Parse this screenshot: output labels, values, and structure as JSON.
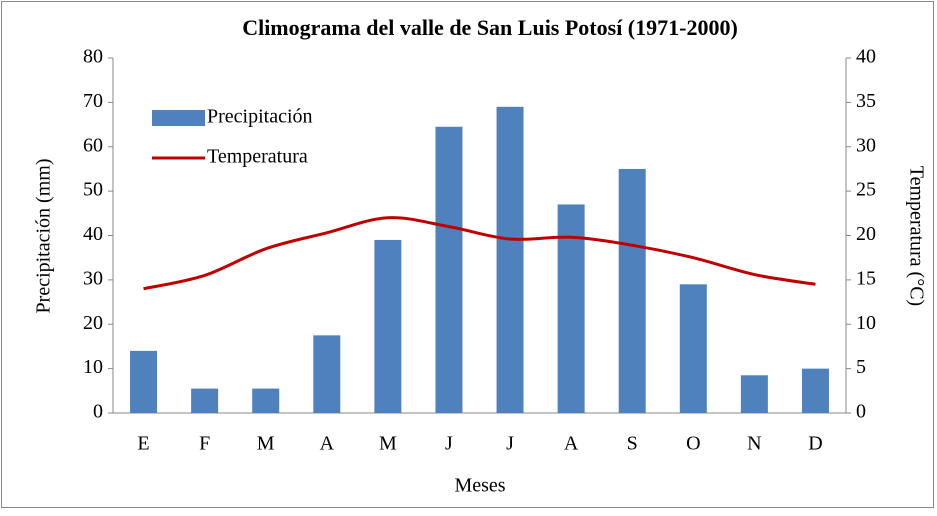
{
  "chart_data": {
    "type": "bar-line",
    "title": "Climograma del valle de San Luis Potosí (1971-2000)",
    "x_label": "Meses",
    "y_label": "Precipitación (mm)",
    "y2_label": "Temperatura (°C)",
    "categories": [
      "E",
      "F",
      "M",
      "A",
      "M",
      "J",
      "J",
      "A",
      "S",
      "O",
      "N",
      "D"
    ],
    "series": [
      {
        "name": "Precipitación",
        "type": "bar",
        "color": "#4f81bd",
        "values": [
          14,
          5.5,
          5.5,
          17.5,
          39,
          64.5,
          69,
          47,
          55,
          29,
          8.5,
          10
        ]
      },
      {
        "name": "Temperatura",
        "type": "line",
        "color": "#c00000",
        "axis": "y2",
        "values": [
          14,
          15.5,
          18.5,
          20.3,
          22,
          21,
          19.6,
          19.8,
          18.9,
          17.5,
          15.6,
          14.5
        ]
      }
    ],
    "ylim": [
      0,
      80
    ],
    "yticks": [
      0,
      10,
      20,
      30,
      40,
      50,
      60,
      70,
      80
    ],
    "y2lim": [
      0,
      40
    ],
    "y2ticks": [
      0,
      5,
      10,
      15,
      20,
      25,
      30,
      35,
      40
    ],
    "legend": "upper-left"
  }
}
